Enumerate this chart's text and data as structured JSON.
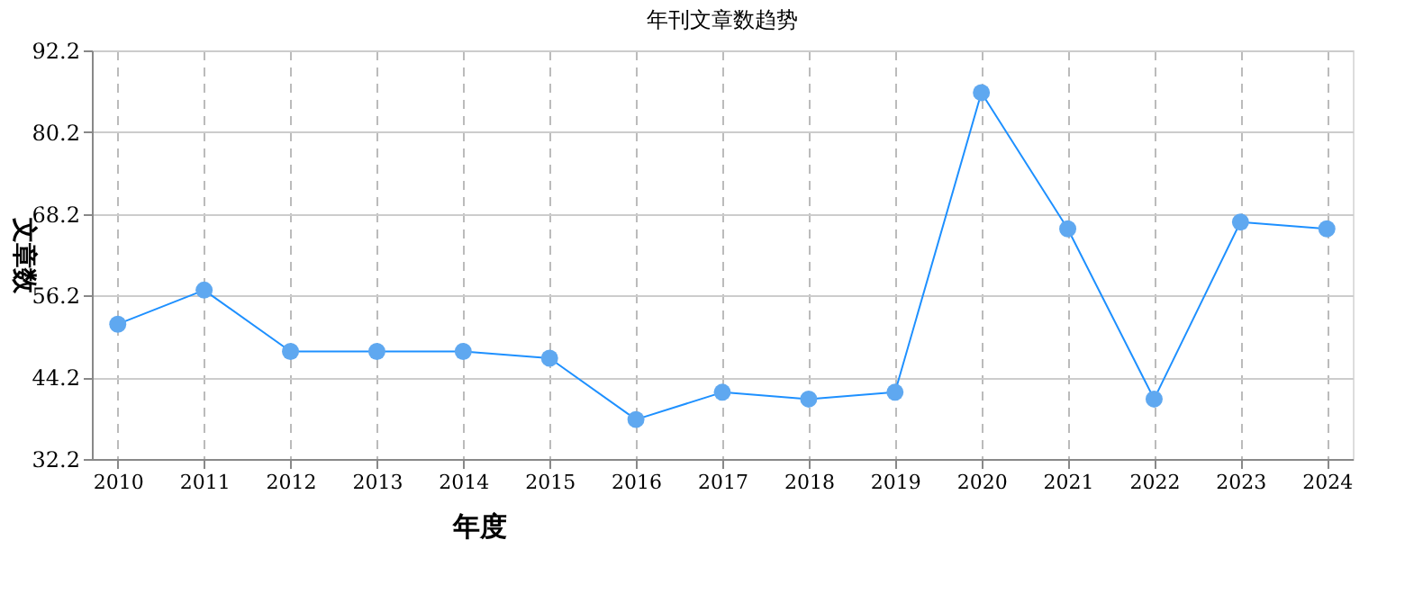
{
  "chart_data": {
    "type": "line",
    "title": "年刊文章数趋势",
    "xlabel": "年度",
    "ylabel": "文章数",
    "categories": [
      "2010",
      "2011",
      "2012",
      "2013",
      "2014",
      "2015",
      "2016",
      "2017",
      "2018",
      "2019",
      "2020",
      "2021",
      "2022",
      "2023",
      "2024"
    ],
    "series": [
      {
        "color": "#1e90ff",
        "values": [
          52,
          57,
          48,
          48,
          48,
          47,
          38,
          42,
          41,
          42,
          86,
          66,
          41,
          67,
          66
        ]
      }
    ],
    "ylim": [
      32.2,
      92.2
    ],
    "yticks": [
      32.2,
      44.2,
      56.2,
      68.2,
      80.2,
      92.2
    ],
    "grid": true,
    "marker": "circle",
    "line_style": "solid"
  }
}
